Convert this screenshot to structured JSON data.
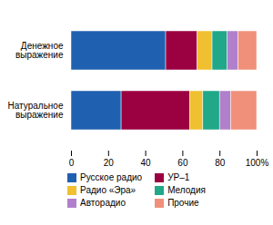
{
  "chart_data": {
    "type": "bar",
    "orientation": "horizontal",
    "stacked": true,
    "categories": [
      "Денежное\nвыражение",
      "Натуральное\nвыражение"
    ],
    "series": [
      {
        "name": "Русское радио",
        "color": "#2060b0",
        "values": [
          51,
          27
        ]
      },
      {
        "name": "УР–1",
        "color": "#9b0040",
        "values": [
          17,
          37
        ]
      },
      {
        "name": "Радио «Эра»",
        "color": "#f0c030",
        "values": [
          8,
          7
        ]
      },
      {
        "name": "Мелодия",
        "color": "#20a888",
        "values": [
          8,
          9
        ]
      },
      {
        "name": "Авторадио",
        "color": "#b080cc",
        "values": [
          6,
          6
        ]
      },
      {
        "name": "Прочие",
        "color": "#f0907a",
        "values": [
          10,
          14
        ]
      }
    ],
    "xlim": [
      0,
      100
    ],
    "xticks": [
      0,
      20,
      40,
      60,
      80,
      {
        "value": 100,
        "label": "100%"
      }
    ],
    "grid": false,
    "legend": "bottom"
  }
}
